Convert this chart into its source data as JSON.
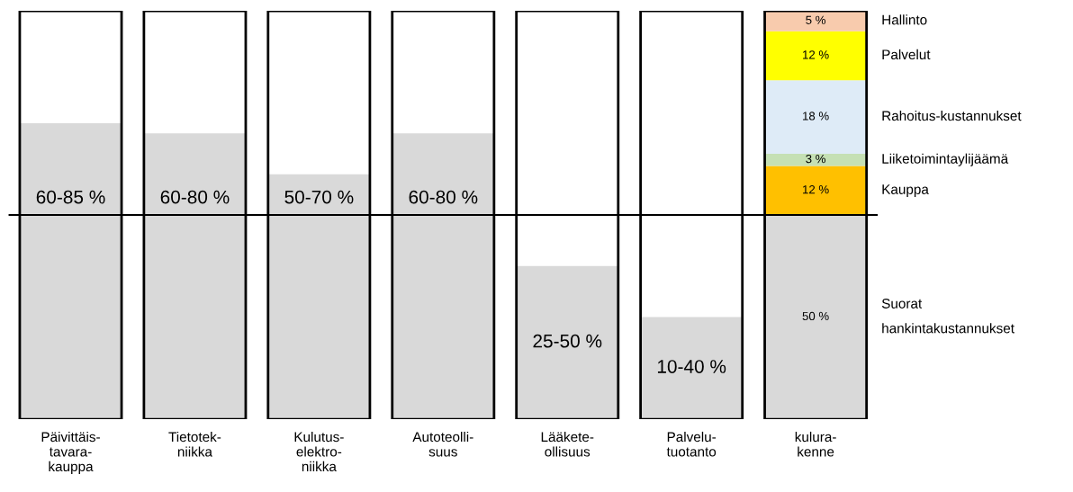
{
  "chart_data": {
    "type": "bar",
    "stacked": true,
    "legend": false,
    "grid": false,
    "ylim": [
      0,
      100
    ],
    "tick_labels": "x",
    "categories": [
      "Päivittäis-\ntavara-\nkauppa",
      "Tietotek-\nniikka",
      "Kulutus-\nelektro-\nniikka",
      "Autoteolli-\nsuus",
      "Lääkete-\nollisuus",
      "Palvelu-\ntuotanto",
      "kulura-\nkenne"
    ],
    "series": [
      {
        "color": "#d9d9d9",
        "values": [
          72.5,
          70,
          60,
          70,
          37.5,
          25,
          null
        ]
      },
      {
        "name": "Suorat\nhankintakustannukset",
        "color": "#d9d9d9",
        "values": [
          null,
          null,
          null,
          null,
          null,
          null,
          50
        ],
        "value_labels": [
          null,
          null,
          null,
          null,
          null,
          null,
          "50 %"
        ]
      },
      {
        "name": "Kauppa",
        "color": "#ffc000",
        "values": [
          null,
          null,
          null,
          null,
          null,
          null,
          12
        ],
        "value_labels": [
          null,
          null,
          null,
          null,
          null,
          null,
          "12 %"
        ]
      },
      {
        "name": "Liiketoimintaylijäämä",
        "color": "#c5e0b4",
        "values": [
          null,
          null,
          null,
          null,
          null,
          null,
          3
        ],
        "value_labels": [
          null,
          null,
          null,
          null,
          null,
          null,
          "3 %"
        ]
      },
      {
        "name": "Rahoitus-kustannukset",
        "color": "#deebf7",
        "values": [
          null,
          null,
          null,
          null,
          null,
          null,
          18
        ],
        "value_labels": [
          null,
          null,
          null,
          null,
          null,
          null,
          "18 %"
        ]
      },
      {
        "name": "Palvelut",
        "color": "#ffff00",
        "values": [
          null,
          null,
          null,
          null,
          null,
          null,
          12
        ],
        "value_labels": [
          null,
          null,
          null,
          null,
          null,
          null,
          "12 %"
        ]
      },
      {
        "name": "Hallinto",
        "color": "#f8cbad",
        "values": [
          null,
          null,
          null,
          null,
          null,
          null,
          5
        ],
        "value_labels": [
          null,
          null,
          null,
          null,
          null,
          null,
          "5 %"
        ]
      }
    ],
    "annotations": [
      "60-85 %",
      "60-80 %",
      "50-70 %",
      "60-80 %",
      "25-50 %",
      "10-40 %"
    ],
    "ref_lines": [
      {
        "axis": "y",
        "value": 50,
        "color": "#000000"
      }
    ]
  }
}
